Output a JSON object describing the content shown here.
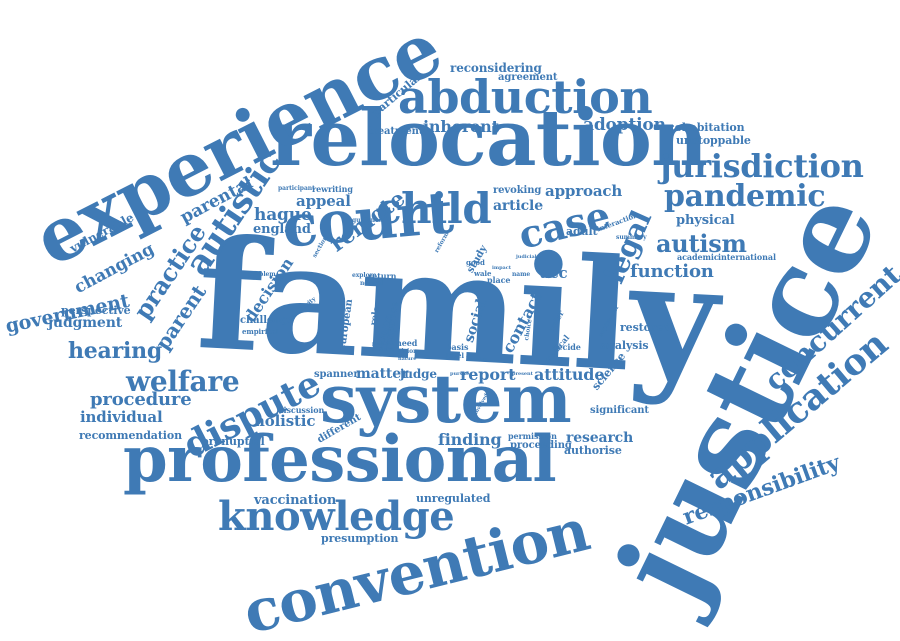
{
  "color": "#3f7ab5",
  "words": [
    {
      "id": "family",
      "text": "family"
    },
    {
      "id": "justice",
      "text": "justice"
    },
    {
      "id": "relocation",
      "text": "relocation"
    },
    {
      "id": "experience",
      "text": "experience"
    },
    {
      "id": "system",
      "text": "system"
    },
    {
      "id": "professional",
      "text": "professional"
    },
    {
      "id": "court",
      "text": "court"
    },
    {
      "id": "convention",
      "text": "convention"
    },
    {
      "id": "abduction",
      "text": "abduction"
    },
    {
      "id": "knowledge",
      "text": "knowledge"
    },
    {
      "id": "application",
      "text": "application"
    },
    {
      "id": "concurrent",
      "text": "concurrent"
    },
    {
      "id": "jurisdiction",
      "text": "jurisdiction"
    },
    {
      "id": "pandemic",
      "text": "pandemic"
    },
    {
      "id": "child",
      "text": "child"
    },
    {
      "id": "case",
      "text": "case"
    },
    {
      "id": "dispute",
      "text": "dispute"
    },
    {
      "id": "welfare",
      "text": "welfare"
    },
    {
      "id": "autistic",
      "text": "autistic"
    },
    {
      "id": "responsibility",
      "text": "responsibility"
    },
    {
      "id": "legal",
      "text": "legal"
    },
    {
      "id": "autism",
      "text": "autism"
    },
    {
      "id": "practice",
      "text": "practice"
    },
    {
      "id": "hearing",
      "text": "hearing"
    },
    {
      "id": "government",
      "text": "government"
    },
    {
      "id": "parental",
      "text": "parental"
    },
    {
      "id": "adoption",
      "text": "adoption"
    },
    {
      "id": "inherent",
      "text": "inherent"
    },
    {
      "id": "function",
      "text": "function"
    },
    {
      "id": "remote",
      "text": "remote"
    },
    {
      "id": "parent",
      "text": "parent"
    },
    {
      "id": "changing",
      "text": "changing"
    },
    {
      "id": "procedure",
      "text": "procedure"
    },
    {
      "id": "holistic",
      "text": "holistic"
    },
    {
      "id": "finding",
      "text": "finding"
    },
    {
      "id": "vaccination",
      "text": "vaccination"
    },
    {
      "id": "presumption",
      "text": "presumption"
    },
    {
      "id": "unregulated",
      "text": "unregulated"
    },
    {
      "id": "report",
      "text": "report"
    },
    {
      "id": "attitude",
      "text": "attitude"
    },
    {
      "id": "research",
      "text": "research"
    },
    {
      "id": "authorise",
      "text": "authorise"
    },
    {
      "id": "proceeding",
      "text": "proceeding"
    },
    {
      "id": "permission",
      "text": "permission"
    },
    {
      "id": "individual",
      "text": "individual"
    },
    {
      "id": "recommendation",
      "text": "recommendation"
    },
    {
      "id": "prenuptial",
      "text": "prenuptial"
    },
    {
      "id": "judgment",
      "text": "judgment"
    },
    {
      "id": "perspective",
      "text": "perspective"
    },
    {
      "id": "decision",
      "text": "decision"
    },
    {
      "id": "hague",
      "text": "hague"
    },
    {
      "id": "appeal",
      "text": "appeal"
    },
    {
      "id": "england",
      "text": "england"
    },
    {
      "id": "vulnerable",
      "text": "vulnerable"
    },
    {
      "id": "reconsidering",
      "text": "reconsidering"
    },
    {
      "id": "agreement",
      "text": "agreement"
    },
    {
      "id": "treatment",
      "text": "treatment"
    },
    {
      "id": "particular",
      "text": "particular"
    },
    {
      "id": "cohabitation",
      "text": "cohabitation"
    },
    {
      "id": "unstoppable",
      "text": "unstoppable"
    },
    {
      "id": "approach",
      "text": "approach"
    },
    {
      "id": "article",
      "text": "article"
    },
    {
      "id": "revoking",
      "text": "revoking"
    },
    {
      "id": "physical",
      "text": "physical"
    },
    {
      "id": "adult",
      "text": "adult"
    },
    {
      "id": "interaction",
      "text": "interaction"
    },
    {
      "id": "summary",
      "text": "summary"
    },
    {
      "id": "academic",
      "text": "academic"
    },
    {
      "id": "international",
      "text": "international"
    },
    {
      "id": "acc",
      "text": "acc"
    },
    {
      "id": "contact",
      "text": "contact"
    },
    {
      "id": "social",
      "text": "social"
    },
    {
      "id": "analysis",
      "text": "analysis"
    },
    {
      "id": "restored",
      "text": "restored"
    },
    {
      "id": "science",
      "text": "science"
    },
    {
      "id": "significant",
      "text": "significant"
    },
    {
      "id": "matter",
      "text": "matter"
    },
    {
      "id": "judge",
      "text": "judge"
    },
    {
      "id": "spanner",
      "text": "spanner"
    },
    {
      "id": "challenge",
      "text": "challenge"
    },
    {
      "id": "empirical",
      "text": "empirical"
    },
    {
      "id": "discussion",
      "text": "discussion"
    },
    {
      "id": "different",
      "text": "different"
    },
    {
      "id": "participant",
      "text": "participant"
    },
    {
      "id": "rewriting",
      "text": "rewriting"
    },
    {
      "id": "guidance",
      "text": "guidance"
    },
    {
      "id": "study",
      "text": "study"
    },
    {
      "id": "scope",
      "text": "scope"
    },
    {
      "id": "response",
      "text": "response"
    },
    {
      "id": "european",
      "text": "european"
    },
    {
      "id": "need",
      "text": "need"
    },
    {
      "id": "role",
      "text": "role"
    },
    {
      "id": "basis",
      "text": "basis"
    },
    {
      "id": "level",
      "text": "level"
    },
    {
      "id": "place",
      "text": "place"
    },
    {
      "id": "order",
      "text": "order"
    },
    {
      "id": "decide",
      "text": "decide"
    },
    {
      "id": "medical",
      "text": "medical"
    },
    {
      "id": "choice",
      "text": "choice"
    },
    {
      "id": "september",
      "text": "september"
    },
    {
      "id": "lesson",
      "text": "lesson"
    },
    {
      "id": "good",
      "text": "good"
    },
    {
      "id": "wale",
      "text": "wale"
    },
    {
      "id": "name",
      "text": "name"
    },
    {
      "id": "return",
      "text": "return"
    },
    {
      "id": "problem",
      "text": "problem"
    },
    {
      "id": "explore",
      "text": "explore"
    },
    {
      "id": "normal",
      "text": "normal"
    },
    {
      "id": "section",
      "text": "section"
    },
    {
      "id": "position",
      "text": "position"
    },
    {
      "id": "difficult",
      "text": "difficult"
    },
    {
      "id": "vision",
      "text": "vision"
    },
    {
      "id": "nature",
      "text": "nature"
    },
    {
      "id": "reform",
      "text": "reform"
    },
    {
      "id": "judicial",
      "text": "judicial"
    },
    {
      "id": "authority",
      "text": "authority"
    },
    {
      "id": "involved",
      "text": "involved"
    },
    {
      "id": "present",
      "text": "present"
    },
    {
      "id": "pursue",
      "text": "pursue"
    },
    {
      "id": "impact",
      "text": "impact"
    }
  ]
}
